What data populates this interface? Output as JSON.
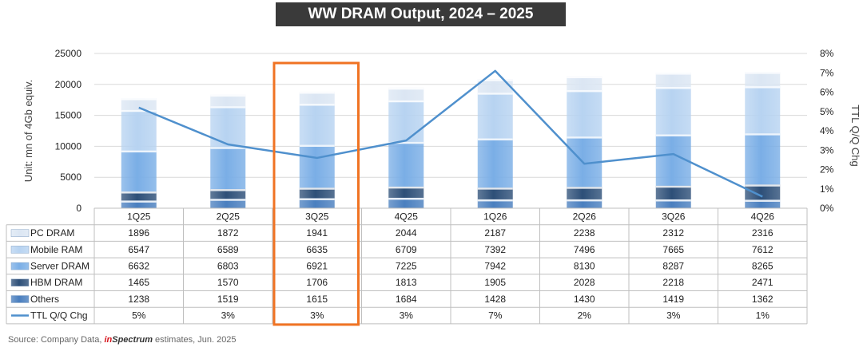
{
  "title": "WW DRAM Output, 2024 – 2025",
  "source": {
    "prefix": "Source: Company Data, ",
    "brand_a": "in",
    "brand_b": "Spectrum",
    "suffix": " estimates, Jun. 2025"
  },
  "colors": {
    "others": "#4a7fbf",
    "hbm": "#2d4f78",
    "server": "#7aaee6",
    "mobile": "#b7d3f1",
    "pc": "#dbe6f3",
    "line": "#4f90cd",
    "highlight": "#f07323"
  },
  "chart_data": {
    "type": "bar",
    "stacked": true,
    "categories": [
      "1Q25",
      "2Q25",
      "3Q25",
      "4Q25",
      "1Q26",
      "2Q26",
      "3Q26",
      "4Q26"
    ],
    "highlight_category": "3Q25",
    "ylabel": "Unit: mn of 4Gb equiv.",
    "y2label": "TTL Q/Q Chg",
    "ylim": [
      0,
      25000
    ],
    "yticks": [
      "0",
      "5000",
      "10000",
      "15000",
      "20000",
      "25000"
    ],
    "y2lim": [
      0,
      8
    ],
    "y2ticks": [
      "0%",
      "1%",
      "2%",
      "3%",
      "4%",
      "5%",
      "6%",
      "7%",
      "8%"
    ],
    "grid": true,
    "series": [
      {
        "name": "PC DRAM",
        "key": "pc",
        "values": [
          1896,
          1872,
          1941,
          2044,
          2187,
          2238,
          2312,
          2316
        ]
      },
      {
        "name": "Mobile RAM",
        "key": "mobile",
        "values": [
          6547,
          6589,
          6635,
          6709,
          7392,
          7496,
          7665,
          7612
        ]
      },
      {
        "name": "Server DRAM",
        "key": "server",
        "values": [
          6632,
          6803,
          6921,
          7225,
          7942,
          8130,
          8287,
          8265
        ]
      },
      {
        "name": "HBM DRAM",
        "key": "hbm",
        "values": [
          1465,
          1570,
          1706,
          1813,
          1905,
          2028,
          2218,
          2471
        ]
      },
      {
        "name": "Others",
        "key": "others",
        "values": [
          1238,
          1519,
          1615,
          1684,
          1428,
          1430,
          1419,
          1362
        ]
      }
    ],
    "line_series": {
      "name": "TTL Q/Q Chg",
      "labels": [
        "5%",
        "3%",
        "3%",
        "3%",
        "7%",
        "2%",
        "3%",
        "1%"
      ],
      "values": [
        5.2,
        3.3,
        2.6,
        3.5,
        7.1,
        2.3,
        2.8,
        0.6
      ]
    }
  }
}
